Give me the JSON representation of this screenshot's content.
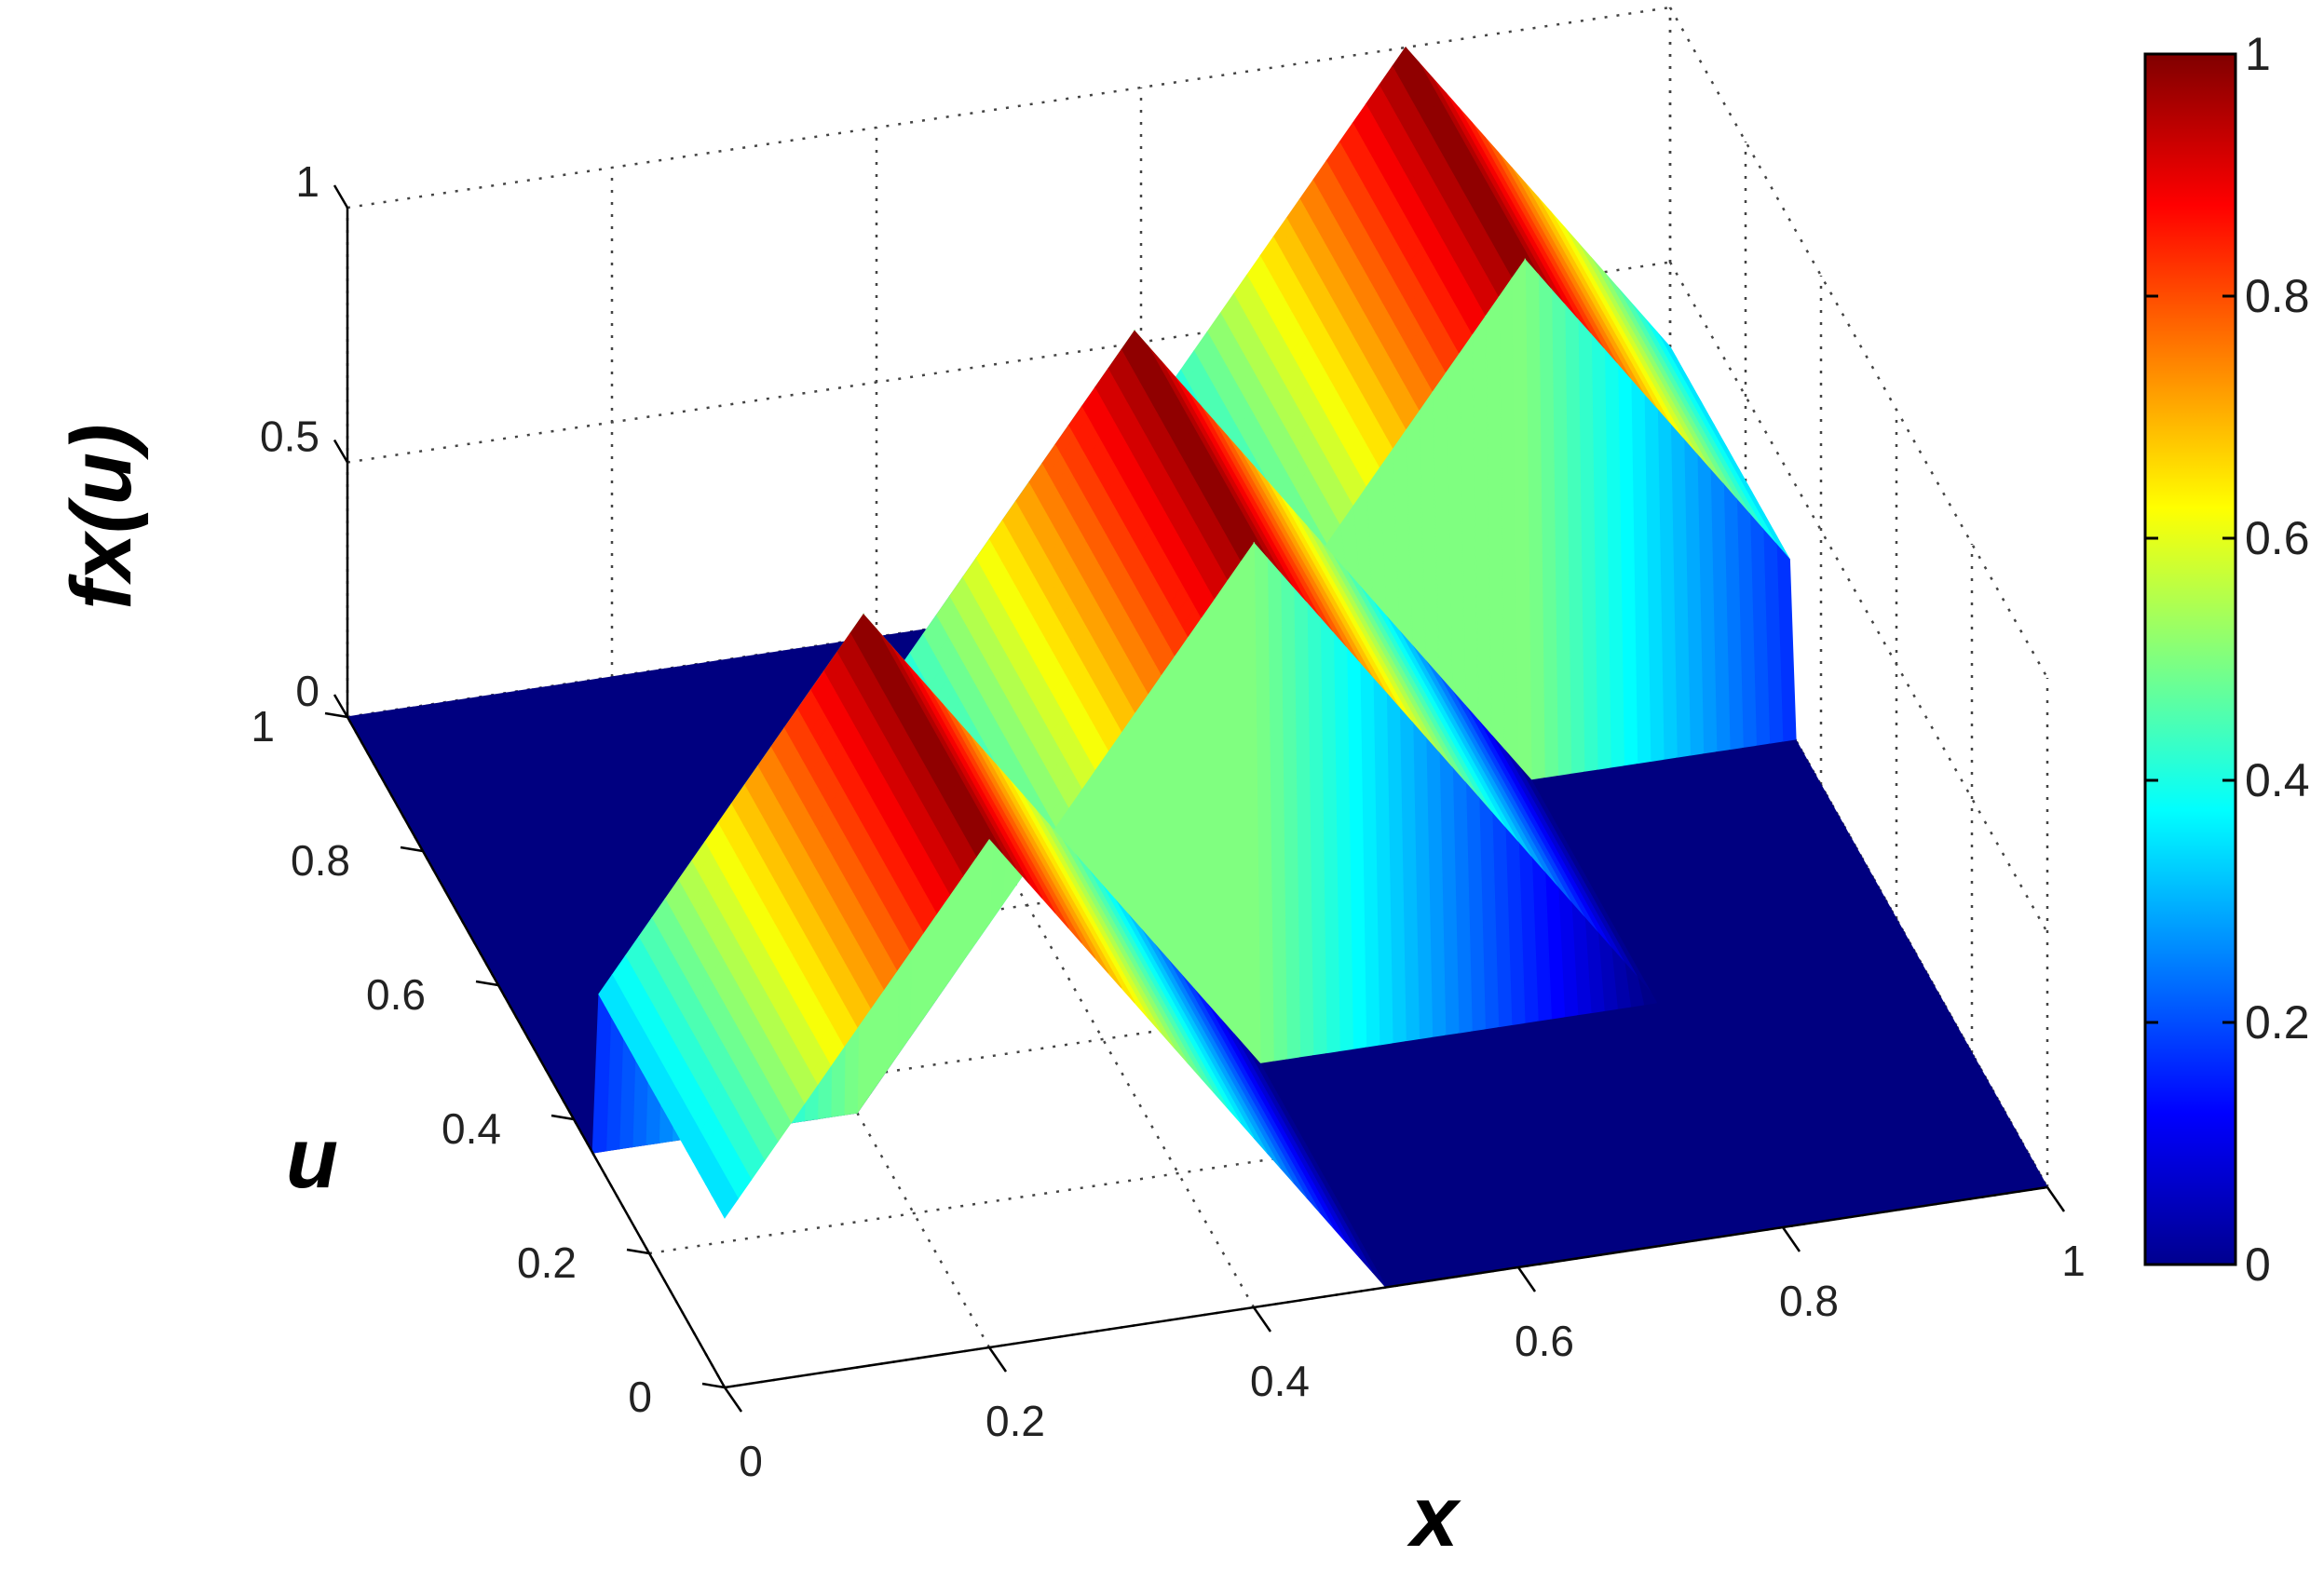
{
  "chart_data": {
    "type": "surface",
    "xlabel": "x",
    "ylabel": "u",
    "zlabel": "fx(u)",
    "xlim": [
      0,
      1
    ],
    "ylim": [
      0,
      1
    ],
    "zlim": [
      0,
      1
    ],
    "x_ticks": [
      {
        "value": 0,
        "label": "0"
      },
      {
        "value": 0.2,
        "label": "0.2"
      },
      {
        "value": 0.4,
        "label": "0.4"
      },
      {
        "value": 0.6,
        "label": "0.6"
      },
      {
        "value": 0.8,
        "label": "0.8"
      },
      {
        "value": 1,
        "label": "1"
      }
    ],
    "u_ticks": [
      {
        "value": 0,
        "label": "0"
      },
      {
        "value": 0.2,
        "label": "0.2"
      },
      {
        "value": 0.4,
        "label": "0.4"
      },
      {
        "value": 0.6,
        "label": "0.6"
      },
      {
        "value": 0.8,
        "label": "0.8"
      },
      {
        "value": 1,
        "label": "1"
      }
    ],
    "z_ticks": [
      {
        "value": 0,
        "label": "0"
      },
      {
        "value": 0.5,
        "label": "0.5"
      },
      {
        "value": 1,
        "label": "1"
      }
    ],
    "colorbar": {
      "colormap": "jet",
      "range": [
        0,
        1
      ],
      "ticks": [
        {
          "value": 0,
          "label": "0"
        },
        {
          "value": 0.2,
          "label": "0.2"
        },
        {
          "value": 0.4,
          "label": "0.4"
        },
        {
          "value": 0.6,
          "label": "0.6"
        },
        {
          "value": 0.8,
          "label": "0.8"
        },
        {
          "value": 1,
          "label": "1"
        }
      ]
    },
    "membership_peaks_x": [
      0.2,
      0.5,
      0.8
    ],
    "membership_half_width": 0.3,
    "grid": true
  }
}
